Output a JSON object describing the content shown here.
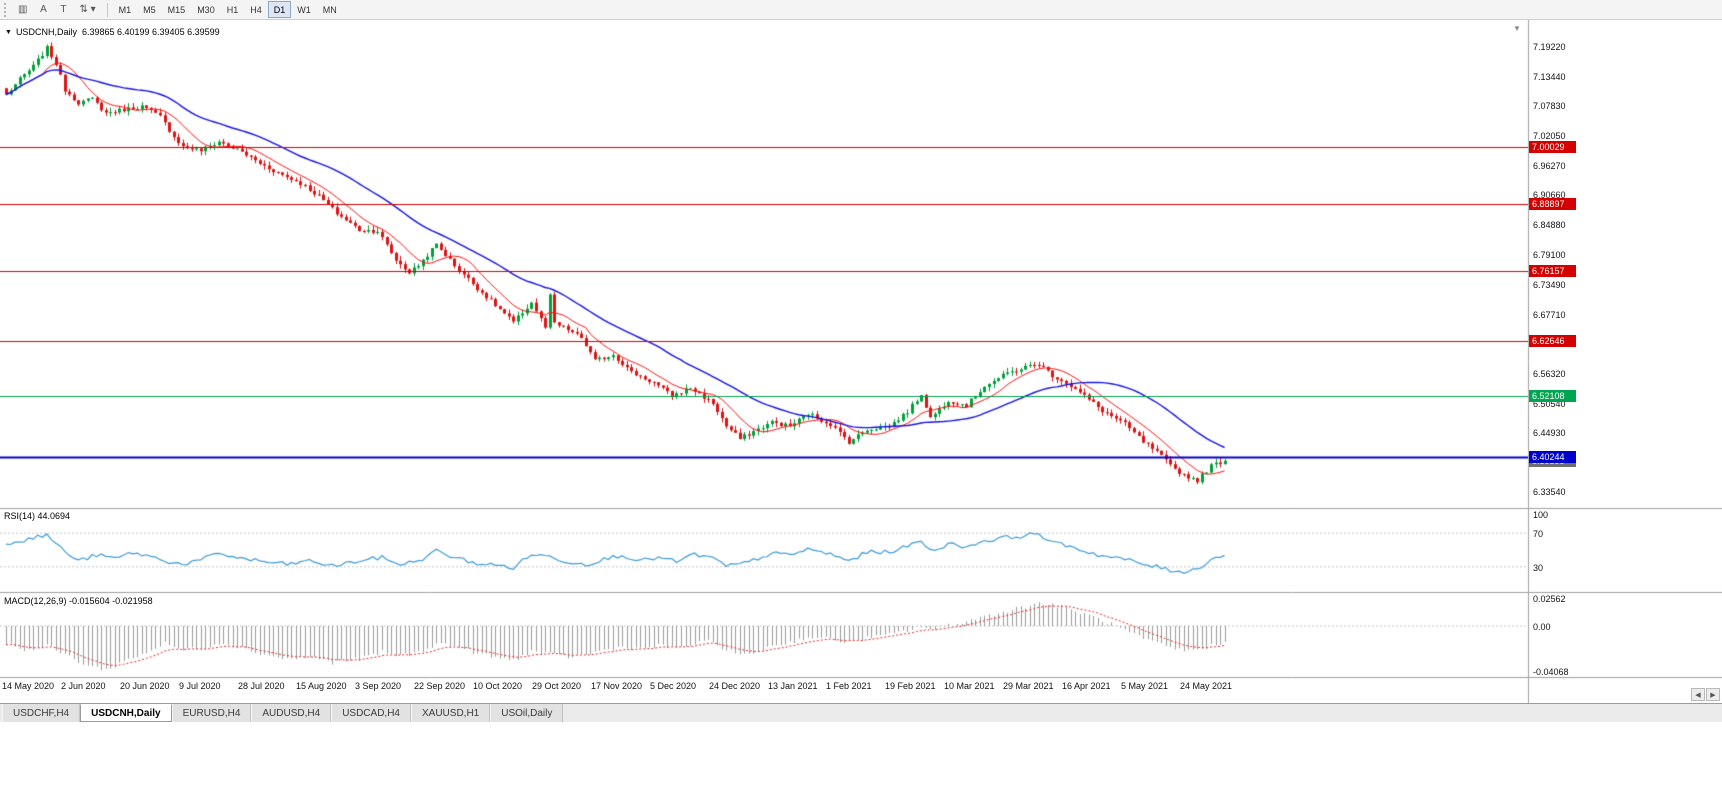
{
  "toolbar": {
    "icon_buttons": [
      {
        "name": "chart-type-icon-button",
        "glyph": "▥"
      },
      {
        "name": "cursor-a-button",
        "glyph": "A"
      },
      {
        "name": "text-tool-button",
        "glyph": "T"
      },
      {
        "name": "scale-tool-button",
        "glyph": "⇅ ▾"
      }
    ],
    "timeframes": [
      "M1",
      "M5",
      "M15",
      "M30",
      "H1",
      "H4",
      "D1",
      "W1",
      "MN"
    ],
    "active_timeframe": "D1"
  },
  "icons": {
    "one_click_trading": "▼",
    "shift_marker": "▼",
    "scroll_left": "◀",
    "scroll_right": "▶"
  },
  "chart_data": {
    "type": "candlestick",
    "title_symbol": "USDCNH,Daily",
    "title_ohlc": "6.39865 6.40199 6.39405 6.39599",
    "bars": 270,
    "ylim": [
      6.3105,
      7.2288
    ],
    "y_ticks": [
      "7.19220",
      "7.13440",
      "7.07830",
      "7.02050",
      "6.96270",
      "6.90660",
      "6.84880",
      "6.79100",
      "6.73490",
      "6.67710",
      "6.62100",
      "6.56320",
      "6.50540",
      "6.44930",
      "6.39150",
      "6.33540"
    ],
    "x_labels": [
      "14 May 2020",
      "2 Jun 2020",
      "20 Jun 2020",
      "9 Jul 2020",
      "28 Jul 2020",
      "15 Aug 2020",
      "3 Sep 2020",
      "22 Sep 2020",
      "10 Oct 2020",
      "29 Oct 2020",
      "17 Nov 2020",
      "5 Dec 2020",
      "24 Dec 2020",
      "13 Jan 2021",
      "1 Feb 2021",
      "19 Feb 2021",
      "10 Mar 2021",
      "29 Mar 2021",
      "16 Apr 2021",
      "5 May 2021",
      "24 May 2021"
    ],
    "levels": [
      {
        "value": 7.00029,
        "label": "7.00029",
        "color": "#d40000",
        "width": 1
      },
      {
        "value": 6.88897,
        "label": "6.88897",
        "color": "#d40000",
        "width": 1
      },
      {
        "value": 6.76157,
        "label": "6.76157",
        "color": "#d40000",
        "width": 1
      },
      {
        "value": 6.62646,
        "label": "6.62646",
        "color": "#d40000",
        "width": 1
      },
      {
        "value": 6.52108,
        "label": "6.52108",
        "color": "#00a550",
        "width": 1
      },
      {
        "value": 6.40244,
        "label": "6.40244",
        "color": "#0000cc",
        "width": 2
      }
    ],
    "current_price": {
      "value": 6.39599,
      "label": "6.39599",
      "color": "#6e6e6e"
    },
    "close_anchors": [
      [
        0,
        7.1
      ],
      [
        3,
        7.13
      ],
      [
        6,
        7.155
      ],
      [
        9,
        7.19
      ],
      [
        11,
        7.16
      ],
      [
        13,
        7.11
      ],
      [
        16,
        7.085
      ],
      [
        19,
        7.092
      ],
      [
        22,
        7.065
      ],
      [
        26,
        7.072
      ],
      [
        30,
        7.078
      ],
      [
        34,
        7.058
      ],
      [
        37,
        7.02
      ],
      [
        39,
        7.0
      ],
      [
        43,
        6.993
      ],
      [
        47,
        7.01
      ],
      [
        52,
        6.99
      ],
      [
        56,
        6.968
      ],
      [
        60,
        6.95
      ],
      [
        65,
        6.93
      ],
      [
        69,
        6.905
      ],
      [
        73,
        6.872
      ],
      [
        78,
        6.84
      ],
      [
        82,
        6.838
      ],
      [
        86,
        6.782
      ],
      [
        89,
        6.758
      ],
      [
        91,
        6.772
      ],
      [
        95,
        6.812
      ],
      [
        99,
        6.772
      ],
      [
        104,
        6.728
      ],
      [
        108,
        6.695
      ],
      [
        112,
        6.662
      ],
      [
        116,
        6.7
      ],
      [
        119,
        6.652
      ],
      [
        120,
        6.712
      ],
      [
        121,
        6.66
      ],
      [
        124,
        6.648
      ],
      [
        127,
        6.632
      ],
      [
        130,
        6.588
      ],
      [
        134,
        6.6
      ],
      [
        138,
        6.566
      ],
      [
        143,
        6.546
      ],
      [
        147,
        6.52
      ],
      [
        151,
        6.536
      ],
      [
        156,
        6.506
      ],
      [
        159,
        6.462
      ],
      [
        162,
        6.438
      ],
      [
        165,
        6.452
      ],
      [
        169,
        6.47
      ],
      [
        173,
        6.462
      ],
      [
        177,
        6.486
      ],
      [
        182,
        6.466
      ],
      [
        186,
        6.432
      ],
      [
        190,
        6.456
      ],
      [
        195,
        6.462
      ],
      [
        199,
        6.49
      ],
      [
        202,
        6.524
      ],
      [
        204,
        6.478
      ],
      [
        208,
        6.512
      ],
      [
        212,
        6.502
      ],
      [
        216,
        6.54
      ],
      [
        221,
        6.564
      ],
      [
        225,
        6.576
      ],
      [
        228,
        6.582
      ],
      [
        231,
        6.56
      ],
      [
        234,
        6.546
      ],
      [
        238,
        6.52
      ],
      [
        242,
        6.492
      ],
      [
        247,
        6.466
      ],
      [
        251,
        6.432
      ],
      [
        254,
        6.412
      ],
      [
        257,
        6.386
      ],
      [
        260,
        6.368
      ],
      [
        263,
        6.358
      ],
      [
        266,
        6.386
      ],
      [
        269,
        6.396
      ]
    ],
    "rsi": {
      "label": "RSI(14)",
      "value": "44.0694",
      "ticks": [
        {
          "value": 100,
          "label": "100"
        },
        {
          "value": 70,
          "label": "70"
        },
        {
          "value": 30,
          "label": "30"
        }
      ],
      "level_lines": [
        70,
        30
      ],
      "anchors": [
        [
          0,
          58
        ],
        [
          5,
          63
        ],
        [
          9,
          68
        ],
        [
          13,
          48
        ],
        [
          16,
          37
        ],
        [
          20,
          44
        ],
        [
          24,
          40
        ],
        [
          28,
          47
        ],
        [
          32,
          42
        ],
        [
          36,
          36
        ],
        [
          39,
          33
        ],
        [
          43,
          38
        ],
        [
          47,
          46
        ],
        [
          52,
          40
        ],
        [
          57,
          36
        ],
        [
          62,
          33
        ],
        [
          67,
          37
        ],
        [
          72,
          31
        ],
        [
          78,
          37
        ],
        [
          83,
          41
        ],
        [
          87,
          33
        ],
        [
          91,
          37
        ],
        [
          95,
          49
        ],
        [
          99,
          41
        ],
        [
          104,
          34
        ],
        [
          108,
          32
        ],
        [
          112,
          29
        ],
        [
          116,
          45
        ],
        [
          120,
          42
        ],
        [
          124,
          36
        ],
        [
          128,
          33
        ],
        [
          132,
          39
        ],
        [
          136,
          44
        ],
        [
          140,
          37
        ],
        [
          144,
          41
        ],
        [
          148,
          36
        ],
        [
          152,
          45
        ],
        [
          156,
          40
        ],
        [
          159,
          31
        ],
        [
          163,
          34
        ],
        [
          169,
          46
        ],
        [
          173,
          44
        ],
        [
          177,
          51
        ],
        [
          182,
          45
        ],
        [
          186,
          37
        ],
        [
          190,
          47
        ],
        [
          195,
          48
        ],
        [
          199,
          54
        ],
        [
          202,
          62
        ],
        [
          204,
          49
        ],
        [
          208,
          57
        ],
        [
          212,
          54
        ],
        [
          216,
          61
        ],
        [
          221,
          65
        ],
        [
          225,
          67
        ],
        [
          228,
          70
        ],
        [
          231,
          58
        ],
        [
          234,
          56
        ],
        [
          238,
          49
        ],
        [
          242,
          43
        ],
        [
          247,
          39
        ],
        [
          251,
          33
        ],
        [
          254,
          30
        ],
        [
          257,
          26
        ],
        [
          261,
          24
        ],
        [
          264,
          31
        ],
        [
          266,
          39
        ],
        [
          269,
          44
        ]
      ]
    },
    "macd": {
      "label": "MACD(12,26,9)",
      "values": "-0.015604 -0.021958",
      "ticks": [
        {
          "value": 0.02562,
          "label": "0.02562"
        },
        {
          "value": 0,
          "label": "0.00"
        },
        {
          "value": -0.04068,
          "label": "-0.04068"
        }
      ],
      "anchors": [
        [
          0,
          -0.016
        ],
        [
          5,
          -0.022
        ],
        [
          9,
          -0.018
        ],
        [
          13,
          -0.026
        ],
        [
          18,
          -0.036
        ],
        [
          22,
          -0.04
        ],
        [
          26,
          -0.032
        ],
        [
          31,
          -0.024
        ],
        [
          35,
          -0.016
        ],
        [
          39,
          -0.022
        ],
        [
          44,
          -0.019
        ],
        [
          48,
          -0.015
        ],
        [
          52,
          -0.02
        ],
        [
          57,
          -0.026
        ],
        [
          62,
          -0.03
        ],
        [
          67,
          -0.028
        ],
        [
          72,
          -0.033
        ],
        [
          78,
          -0.03
        ],
        [
          83,
          -0.024
        ],
        [
          87,
          -0.027
        ],
        [
          91,
          -0.024
        ],
        [
          95,
          -0.016
        ],
        [
          99,
          -0.018
        ],
        [
          104,
          -0.025
        ],
        [
          108,
          -0.029
        ],
        [
          112,
          -0.031
        ],
        [
          116,
          -0.023
        ],
        [
          120,
          -0.026
        ],
        [
          124,
          -0.028
        ],
        [
          128,
          -0.026
        ],
        [
          132,
          -0.022
        ],
        [
          136,
          -0.019
        ],
        [
          140,
          -0.021
        ],
        [
          144,
          -0.018
        ],
        [
          148,
          -0.02
        ],
        [
          152,
          -0.016
        ],
        [
          156,
          -0.014
        ],
        [
          159,
          -0.022
        ],
        [
          163,
          -0.027
        ],
        [
          166,
          -0.023
        ],
        [
          169,
          -0.018
        ],
        [
          173,
          -0.015
        ],
        [
          177,
          -0.01
        ],
        [
          182,
          -0.012
        ],
        [
          186,
          -0.015
        ],
        [
          190,
          -0.011
        ],
        [
          195,
          -0.008
        ],
        [
          199,
          -0.004
        ],
        [
          202,
          0.0
        ],
        [
          205,
          -0.004
        ],
        [
          208,
          0.001
        ],
        [
          212,
          0.004
        ],
        [
          216,
          0.009
        ],
        [
          221,
          0.014
        ],
        [
          225,
          0.018
        ],
        [
          228,
          0.021
        ],
        [
          231,
          0.019
        ],
        [
          234,
          0.016
        ],
        [
          238,
          0.011
        ],
        [
          242,
          0.005
        ],
        [
          247,
          -0.004
        ],
        [
          251,
          -0.012
        ],
        [
          254,
          -0.016
        ],
        [
          257,
          -0.02
        ],
        [
          261,
          -0.023
        ],
        [
          264,
          -0.02
        ],
        [
          266,
          -0.018
        ],
        [
          269,
          -0.0156
        ]
      ]
    },
    "colors": {
      "up": "#00a03a",
      "down": "#dc1414",
      "ma_fast": "#ff1414",
      "ma_slow": "#1414e6",
      "rsi_line": "#3e9bd8",
      "macd_hist": "#9a9a9a",
      "macd_signal": "#e03030",
      "dashed_level": "#c8c8c8",
      "separator": "#a0a0a0"
    }
  },
  "tabs": {
    "items": [
      "USDCHF,H4",
      "USDCNH,Daily",
      "EURUSD,H4",
      "AUDUSD,H4",
      "USDCAD,H4",
      "XAUUSD,H1",
      "USOil,Daily"
    ],
    "active": "USDCNH,Daily"
  }
}
